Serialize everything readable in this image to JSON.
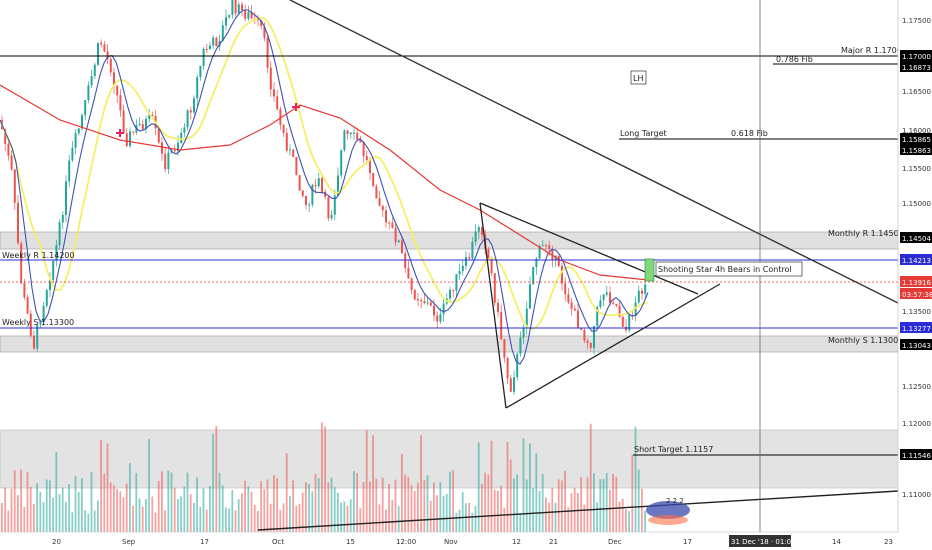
{
  "chart_data": {
    "type": "candlestick",
    "price_axis": {
      "ticks": [
        "1.17500",
        "1.17000",
        "1.16873",
        "1.16500",
        "1.16000",
        "1.15865",
        "1.15863",
        "1.15500",
        "1.15000",
        "1.14504",
        "1.14213",
        "1.13916",
        "03:57:38",
        "1.13500",
        "1.13277",
        "1.13043",
        "1.12500",
        "1.12000",
        "1.11546",
        "1.11000"
      ],
      "range": [
        1.105,
        1.1795
      ]
    },
    "time_axis": {
      "ticks": [
        "20",
        "Sep",
        "17",
        "Oct",
        "15",
        "12:00",
        "Nov",
        "12",
        "21",
        "Dec",
        "17",
        "31 Dec '18 · 01:00",
        "14",
        "23"
      ]
    },
    "levels": [
      {
        "price": 1.17,
        "label": "Major R 1.1700",
        "color": "#000000"
      },
      {
        "price": 1.16873,
        "label": "0.786 Fib",
        "color": "#000000"
      },
      {
        "price": 1.15865,
        "label": "Long Target",
        "color": "#000000"
      },
      {
        "price": 1.15865,
        "label": "0.618 Fib",
        "color": "#000000"
      },
      {
        "price": 1.145,
        "label": "Monthly R 1.14500",
        "color": "#888888"
      },
      {
        "price": 1.142,
        "label": "Weekly R 1.14200",
        "color": "#2c2cd6"
      },
      {
        "price": 1.13916,
        "label": "",
        "color": "#e53935"
      },
      {
        "price": 1.133,
        "label": "Weekly S 1.13300",
        "color": "#2c2cd6"
      },
      {
        "price": 1.13,
        "label": "Monthly S 1.13000",
        "color": "#888888"
      },
      {
        "price": 1.1157,
        "label": "Short Target 1.1157",
        "color": "#000000"
      }
    ],
    "annotations": [
      {
        "text": "LH"
      },
      {
        "text": "Shooting Star 4h Bears in Control"
      }
    ],
    "series": [
      {
        "name": "",
        "color": "#f4f066",
        "kind": "moving-average"
      },
      {
        "name": "",
        "color": "#3f51b5",
        "kind": "moving-average"
      },
      {
        "name": "",
        "color": "#e53935",
        "kind": "moving-average"
      }
    ],
    "colors": {
      "up": "#26a69a",
      "down": "#ef5350",
      "current_price_bg": "#e53935"
    },
    "grid": false
  }
}
